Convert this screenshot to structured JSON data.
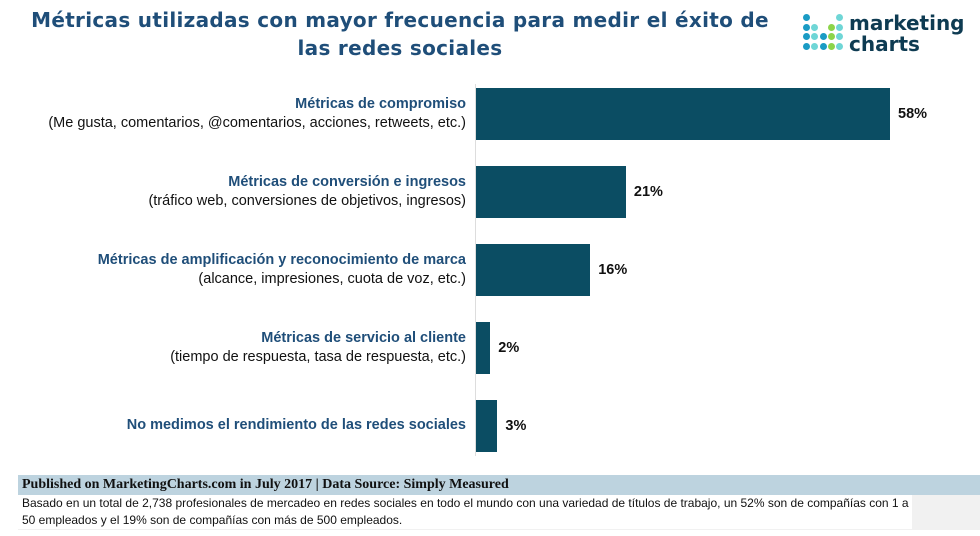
{
  "chart_data": {
    "type": "bar",
    "orientation": "horizontal",
    "title": "Métricas utilizadas con mayor frecuencia para medir el éxito de las redes sociales",
    "categories": [
      {
        "label": "Métricas de compromiso",
        "sublabel": "(Me gusta, comentarios, @comentarios, acciones, retweets, etc.)"
      },
      {
        "label": "Métricas de conversión e ingresos",
        "sublabel": "(tráfico web, conversiones de objetivos, ingresos)"
      },
      {
        "label": "Métricas de amplificación y reconocimiento de marca",
        "sublabel": "(alcance, impresiones, cuota de voz, etc.)"
      },
      {
        "label": "Métricas de servicio al cliente",
        "sublabel": "(tiempo de respuesta, tasa de respuesta, etc.)"
      },
      {
        "label": "No medimos el rendimiento de las redes sociales",
        "sublabel": ""
      }
    ],
    "values": [
      58,
      21,
      16,
      2,
      3
    ],
    "value_labels": [
      "58%",
      "21%",
      "16%",
      "2%",
      "3%"
    ],
    "unit": "%",
    "xlim": [
      0,
      58
    ],
    "grid": false,
    "bar_color": "#0b4d63"
  },
  "logo": {
    "line1": "marketing",
    "line2": "charts"
  },
  "footer": {
    "published": "Published on MarketingCharts.com in July 2017 | Data Source: Simply Measured",
    "note": "Basado en un total de 2,738 profesionales de mercadeo en redes sociales en todo el mundo con una variedad de títulos de trabajo, un 52% son de compañías con 1 a 50 empleados y el 19% son de compañías con más de 500 empleados."
  }
}
